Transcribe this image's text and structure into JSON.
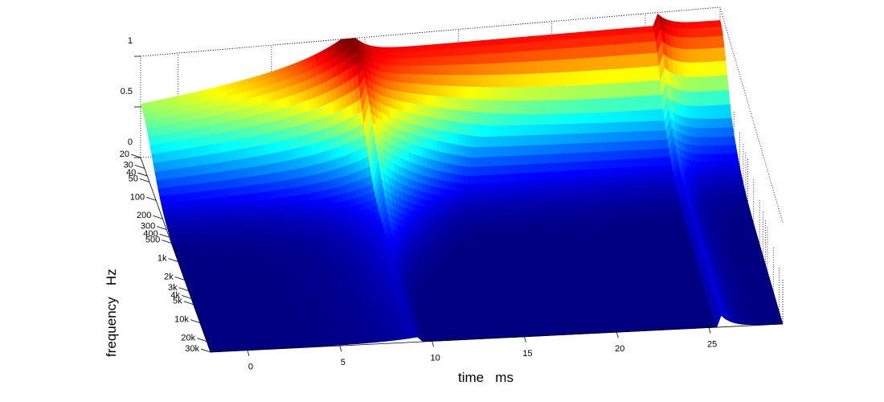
{
  "chart_data": {
    "type": "surface",
    "colormap": "jet",
    "xlabel": "time   ms",
    "ylabel": "frequency   Hz",
    "zlabel": "",
    "x_ticks": [
      "0",
      "5",
      "10",
      "15",
      "20",
      "25"
    ],
    "x_tick_values": [
      0,
      5,
      10,
      15,
      20,
      25
    ],
    "xlim": [
      -2,
      29
    ],
    "y_ticks": [
      "20",
      "30",
      "40",
      "50",
      "100",
      "200",
      "300",
      "400",
      "500",
      "1k",
      "2k",
      "3k",
      "4k",
      "5k",
      "10k",
      "20k",
      "30k"
    ],
    "y_tick_values": [
      20,
      30,
      40,
      50,
      100,
      200,
      300,
      400,
      500,
      1000,
      2000,
      3000,
      4000,
      5000,
      10000,
      20000,
      30000
    ],
    "ylim": [
      20,
      30000
    ],
    "yscale": "log",
    "z_ticks": [
      "0",
      "0.5",
      "1"
    ],
    "z_tick_values": [
      0,
      0.5,
      1
    ],
    "zlim": [
      0,
      1
    ],
    "grid": true,
    "features": {
      "main_onset_ms": 9.5,
      "main_peak_value": 1.0,
      "secondary_onset_ms": 25.5,
      "secondary_peak_value": 0.15
    }
  }
}
